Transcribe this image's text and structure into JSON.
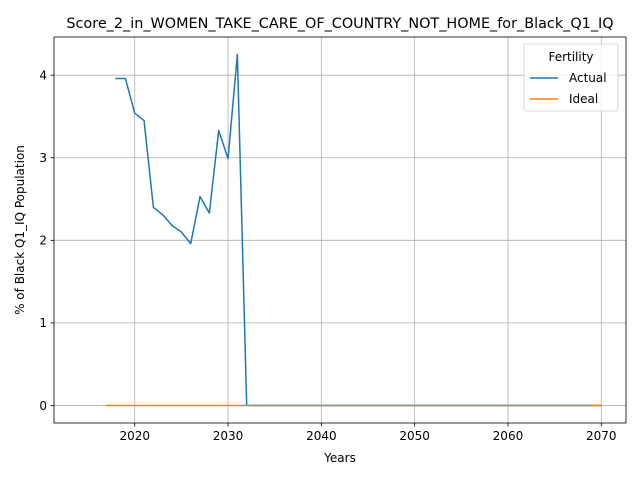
{
  "chart_data": {
    "type": "line",
    "title": "Score_2_in_WOMEN_TAKE_CARE_OF_COUNTRY_NOT_HOME_for_Black_Q1_IQ",
    "xlabel": "Years",
    "ylabel": "% of Black Q1_IQ Population",
    "xlim": [
      2011.35,
      2072.65
    ],
    "ylim": [
      -0.2125,
      4.4625
    ],
    "xticks": [
      2020,
      2030,
      2040,
      2050,
      2060,
      2070
    ],
    "yticks": [
      0,
      1,
      2,
      3,
      4
    ],
    "grid": true,
    "legend": {
      "title": "Fertility",
      "position": "top-right"
    },
    "series": [
      {
        "name": "Actual",
        "color": "#1f77b4",
        "x": [
          2018,
          2019,
          2020,
          2021,
          2022,
          2023,
          2024,
          2025,
          2026,
          2027,
          2028,
          2029,
          2030,
          2031,
          2032,
          2033,
          2034,
          2035,
          2036,
          2037,
          2038,
          2039,
          2040,
          2041,
          2042,
          2043,
          2044,
          2045,
          2046,
          2047,
          2048,
          2049,
          2050,
          2051,
          2052,
          2053,
          2054,
          2055,
          2056,
          2057,
          2058,
          2059,
          2060,
          2061,
          2062,
          2063,
          2064,
          2065,
          2066,
          2067,
          2068,
          2069,
          2070
        ],
        "y": [
          3.96,
          3.96,
          3.54,
          3.45,
          2.4,
          2.31,
          2.18,
          2.1,
          1.96,
          2.53,
          2.33,
          3.33,
          2.99,
          4.25,
          0,
          0,
          0,
          0,
          0,
          0,
          0,
          0,
          0,
          0,
          0,
          0,
          0,
          0,
          0,
          0,
          0,
          0,
          0,
          0,
          0,
          0,
          0,
          0,
          0,
          0,
          0,
          0,
          0,
          0,
          0,
          0,
          0,
          0,
          0,
          0,
          0,
          0,
          0
        ]
      },
      {
        "name": "Ideal",
        "color": "#ff7f0e",
        "x": [
          2017,
          2070
        ],
        "y": [
          0,
          0
        ]
      }
    ]
  }
}
